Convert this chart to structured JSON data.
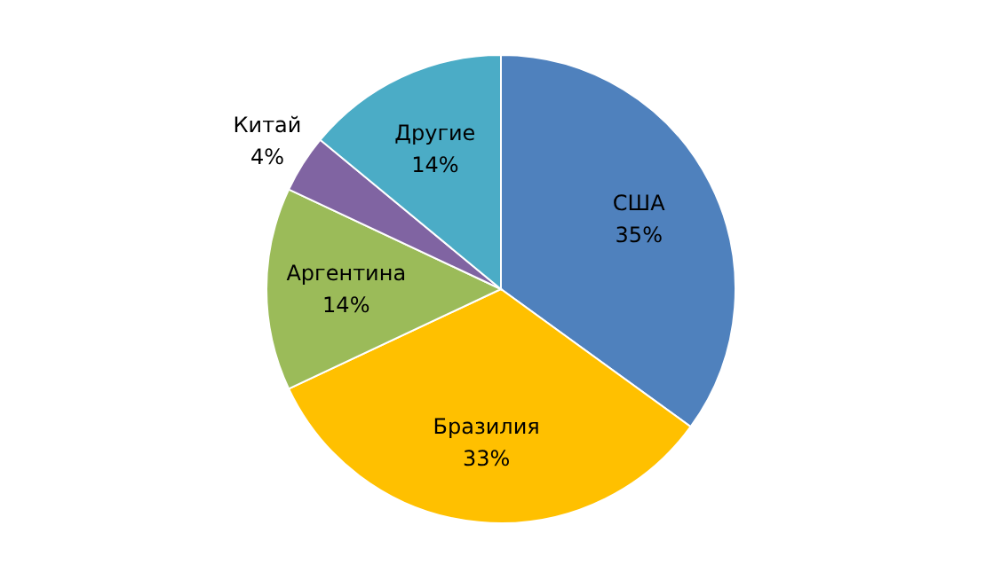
{
  "chart_data": {
    "type": "pie",
    "categories": [
      "США",
      "Бразилия",
      "Аргентина",
      "Китай",
      "Другие"
    ],
    "values": [
      35,
      33,
      14,
      4,
      14
    ],
    "value_labels": [
      "35%",
      "33%",
      "14%",
      "4%",
      "14%"
    ],
    "colors": [
      "#4f81bd",
      "#ffc000",
      "#9bbb59",
      "#8064a2",
      "#4bacc6"
    ]
  }
}
